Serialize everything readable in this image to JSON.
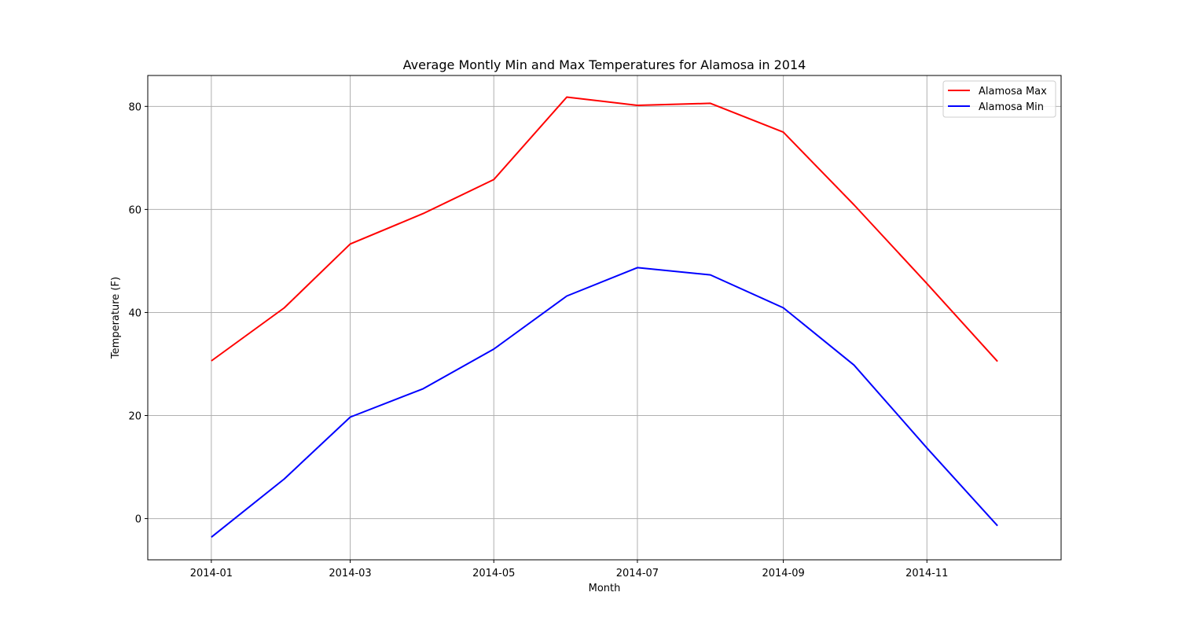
{
  "chart_data": {
    "type": "line",
    "title": "Average Montly Min and Max Temperatures for Alamosa in 2014",
    "xlabel": "Month",
    "ylabel": "Temperature (F)",
    "x": [
      "2014-01-01",
      "2014-02-01",
      "2014-03-01",
      "2014-04-01",
      "2014-05-01",
      "2014-06-01",
      "2014-07-01",
      "2014-08-01",
      "2014-09-01",
      "2014-10-01",
      "2014-11-01",
      "2014-12-01"
    ],
    "x_ticks": [
      "2014-01",
      "2014-03",
      "2014-05",
      "2014-07",
      "2014-09",
      "2014-11"
    ],
    "y_ticks": [
      0,
      20,
      40,
      60,
      80
    ],
    "ylim": [
      -8,
      86
    ],
    "xlim": [
      "2013-12-05",
      "2014-12-28"
    ],
    "grid": true,
    "legend_position": "top-right",
    "series": [
      {
        "name": "Alamosa Max",
        "color": "#ff0000",
        "values": [
          30.6,
          40.9,
          53.3,
          59.2,
          65.8,
          81.8,
          80.2,
          80.6,
          75.0,
          60.9,
          45.6,
          30.5
        ]
      },
      {
        "name": "Alamosa Min",
        "color": "#0000ff",
        "values": [
          -3.6,
          7.7,
          19.7,
          25.2,
          32.9,
          43.2,
          48.7,
          47.3,
          40.9,
          29.8,
          13.7,
          -1.4
        ]
      }
    ]
  }
}
